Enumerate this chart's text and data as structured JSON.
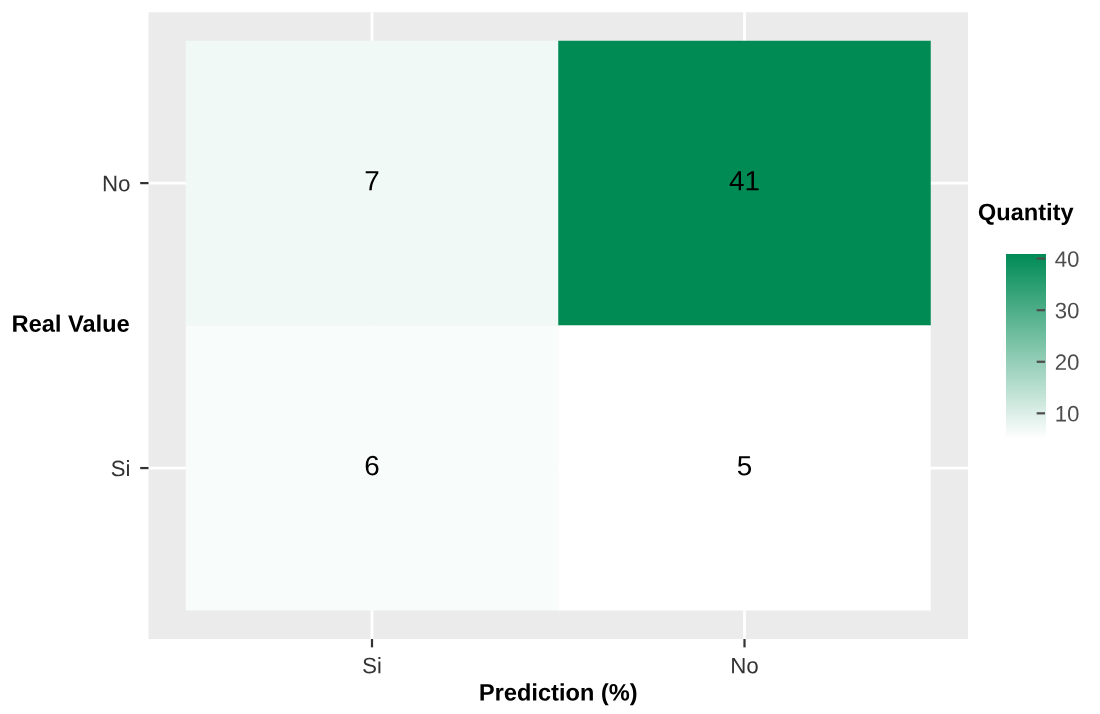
{
  "chart_data": {
    "type": "heatmap",
    "xlabel": "Prediction (%)",
    "ylabel": "Real Value",
    "clabel": "Quantity",
    "categories": [
      "Si",
      "No"
    ],
    "y_categories": [
      "No",
      "Si"
    ],
    "cells": [
      [
        7,
        41
      ],
      [
        6,
        5
      ]
    ],
    "clim": [
      5,
      41
    ],
    "cticks": [
      10,
      20,
      30,
      40
    ],
    "data_labels": true,
    "grid": true
  }
}
